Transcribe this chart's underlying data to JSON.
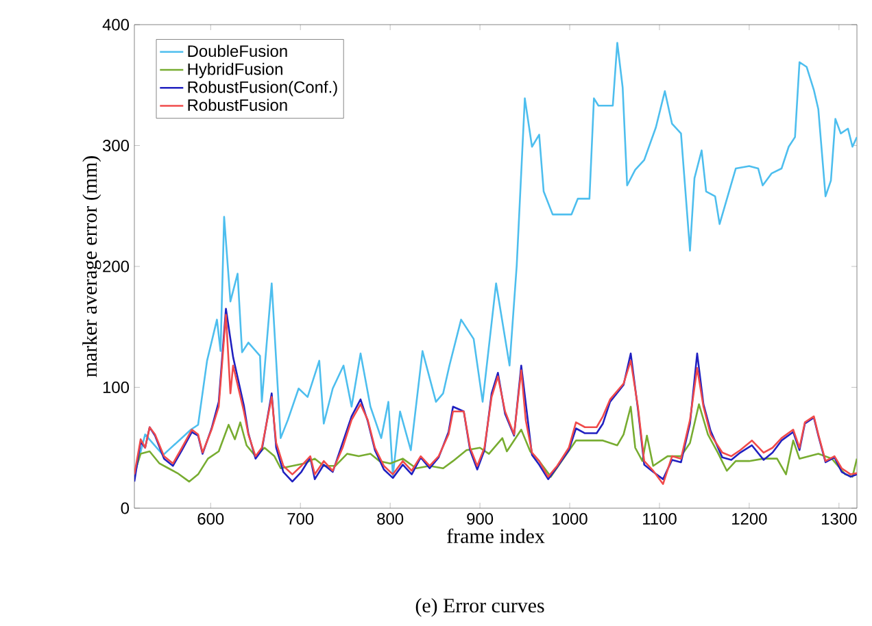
{
  "chart_data": {
    "type": "line",
    "xlabel": "frame index",
    "ylabel": "marker average error (mm)",
    "annotations": [
      "(e) Error curves"
    ],
    "xlim": [
      515,
      1320
    ],
    "ylim": [
      0,
      400
    ],
    "xticks": [
      600,
      700,
      800,
      900,
      1000,
      1100,
      1200,
      1300
    ],
    "yticks": [
      0,
      100,
      200,
      300,
      400
    ],
    "legend": "top left",
    "marker": "none",
    "line_style": "solid",
    "grid": false,
    "series": [
      {
        "name": "DoubleFusion",
        "color": "#4dbeee",
        "x": [
          515,
          527,
          547,
          578,
          586,
          596,
          607,
          611,
          615,
          622,
          630,
          635,
          642,
          655,
          657,
          668,
          678,
          686,
          698,
          708,
          721,
          726,
          736,
          748,
          757,
          767,
          778,
          790,
          798,
          803,
          811,
          823,
          836,
          851,
          859,
          866,
          879,
          893,
          903,
          918,
          933,
          941,
          950,
          958,
          966,
          971,
          981,
          1002,
          1009,
          1022,
          1027,
          1032,
          1048,
          1053,
          1059,
          1064,
          1073,
          1083,
          1096,
          1106,
          1114,
          1124,
          1134,
          1139,
          1147,
          1152,
          1162,
          1167,
          1185,
          1200,
          1210,
          1215,
          1225,
          1236,
          1244,
          1251,
          1256,
          1264,
          1272,
          1277,
          1285,
          1291,
          1296,
          1302,
          1310,
          1315,
          1320
        ],
        "values": [
          27,
          61,
          44,
          65,
          69,
          122,
          156,
          130,
          241,
          171,
          194,
          129,
          137,
          126,
          88,
          186,
          58,
          73,
          99,
          92,
          122,
          70,
          99,
          118,
          84,
          128,
          84,
          58,
          88,
          27,
          80,
          48,
          130,
          88,
          95,
          118,
          156,
          140,
          88,
          186,
          118,
          201,
          339,
          299,
          309,
          262,
          243,
          243,
          256,
          256,
          339,
          333,
          333,
          385,
          348,
          267,
          280,
          288,
          315,
          345,
          318,
          310,
          213,
          273,
          296,
          262,
          258,
          235,
          281,
          283,
          281,
          267,
          277,
          281,
          299,
          307,
          369,
          365,
          346,
          330,
          258,
          271,
          322,
          310,
          314,
          299,
          307
        ]
      },
      {
        "name": "HybridFusion",
        "color": "#77ac30",
        "x": [
          515,
          522,
          532,
          543,
          553,
          563,
          576,
          586,
          597,
          609,
          620,
          627,
          633,
          640,
          650,
          660,
          671,
          678,
          691,
          704,
          716,
          726,
          739,
          752,
          765,
          778,
          788,
          800,
          814,
          829,
          844,
          859,
          870,
          885,
          900,
          910,
          925,
          930,
          946,
          956,
          966,
          979,
          991,
          1007,
          1017,
          1037,
          1053,
          1060,
          1068,
          1073,
          1081,
          1086,
          1093,
          1109,
          1124,
          1134,
          1144,
          1154,
          1165,
          1175,
          1185,
          1200,
          1216,
          1231,
          1241,
          1249,
          1256,
          1277,
          1292,
          1307,
          1315,
          1320
        ],
        "values": [
          29,
          45,
          47,
          37,
          33,
          29,
          22,
          28,
          41,
          47,
          69,
          57,
          71,
          52,
          43,
          50,
          43,
          33,
          35,
          37,
          41,
          35,
          35,
          45,
          43,
          45,
          39,
          37,
          41,
          33,
          35,
          33,
          39,
          48,
          50,
          45,
          58,
          47,
          65,
          47,
          39,
          26,
          39,
          56,
          56,
          56,
          52,
          61,
          84,
          50,
          39,
          60,
          35,
          43,
          43,
          54,
          86,
          61,
          46,
          31,
          39,
          39,
          41,
          41,
          28,
          56,
          41,
          45,
          41,
          28,
          26,
          41
        ]
      },
      {
        "name": "RobustFusion(Conf.)",
        "color": "#2020c0",
        "x": [
          515,
          522,
          527,
          532,
          538,
          548,
          558,
          568,
          579,
          586,
          591,
          601,
          609,
          617,
          622,
          625,
          637,
          642,
          650,
          657,
          668,
          673,
          681,
          691,
          701,
          711,
          716,
          726,
          736,
          747,
          757,
          767,
          775,
          783,
          793,
          803,
          814,
          824,
          834,
          844,
          854,
          865,
          870,
          882,
          889,
          897,
          905,
          913,
          920,
          928,
          938,
          946,
          951,
          958,
          966,
          976,
          986,
          999,
          1007,
          1017,
          1030,
          1037,
          1045,
          1060,
          1068,
          1076,
          1083,
          1093,
          1104,
          1114,
          1124,
          1134,
          1142,
          1149,
          1157,
          1170,
          1180,
          1190,
          1203,
          1216,
          1226,
          1236,
          1249,
          1256,
          1262,
          1272,
          1277,
          1285,
          1295,
          1303,
          1313,
          1320
        ],
        "values": [
          22,
          55,
          50,
          67,
          60,
          41,
          35,
          48,
          63,
          60,
          45,
          66,
          88,
          165,
          null,
          125,
          85,
          62,
          41,
          48,
          95,
          50,
          30,
          22,
          30,
          42,
          24,
          36,
          30,
          null,
          76,
          90,
          72,
          48,
          32,
          25,
          36,
          28,
          42,
          33,
          42,
          63,
          84,
          80,
          48,
          32,
          48,
          95,
          112,
          78,
          60,
          118,
          null,
          44,
          36,
          24,
          34,
          48,
          66,
          62,
          62,
          70,
          88,
          102,
          128,
          82,
          36,
          30,
          24,
          40,
          38,
          70,
          128,
          86,
          64,
          42,
          40,
          46,
          52,
          40,
          46,
          56,
          63,
          48,
          70,
          75,
          60,
          38,
          42,
          30,
          26,
          28
        ]
      },
      {
        "name": "RobustFusion",
        "color": "#f04a4a",
        "x": [
          515,
          522,
          527,
          532,
          538,
          548,
          558,
          568,
          579,
          586,
          591,
          601,
          609,
          617,
          622,
          625,
          637,
          642,
          650,
          657,
          668,
          673,
          681,
          691,
          701,
          711,
          716,
          726,
          736,
          747,
          757,
          767,
          775,
          783,
          793,
          803,
          814,
          824,
          834,
          844,
          854,
          865,
          870,
          882,
          889,
          897,
          905,
          913,
          920,
          928,
          938,
          946,
          951,
          958,
          966,
          976,
          986,
          999,
          1007,
          1017,
          1030,
          1037,
          1045,
          1060,
          1068,
          1076,
          1083,
          1093,
          1104,
          1114,
          1124,
          1134,
          1142,
          1149,
          1157,
          1170,
          1180,
          1190,
          1203,
          1216,
          1226,
          1236,
          1249,
          1256,
          1262,
          1272,
          1277,
          1285,
          1295,
          1303,
          1313,
          1320
        ],
        "values": [
          28,
          57,
          50,
          67,
          61,
          43,
          37,
          50,
          65,
          61,
          46,
          65,
          84,
          160,
          95,
          118,
          80,
          61,
          43,
          50,
          92,
          54,
          35,
          28,
          35,
          43,
          28,
          39,
          31,
          50,
          73,
          86,
          73,
          50,
          35,
          28,
          39,
          31,
          43,
          35,
          43,
          61,
          80,
          80,
          50,
          35,
          50,
          92,
          109,
          80,
          61,
          114,
          73,
          46,
          39,
          26,
          35,
          50,
          71,
          67,
          67,
          76,
          90,
          103,
          122,
          84,
          39,
          31,
          20,
          43,
          41,
          73,
          116,
          84,
          61,
          46,
          43,
          48,
          56,
          46,
          50,
          58,
          65,
          50,
          71,
          76,
          61,
          39,
          43,
          33,
          28,
          29
        ]
      }
    ]
  }
}
